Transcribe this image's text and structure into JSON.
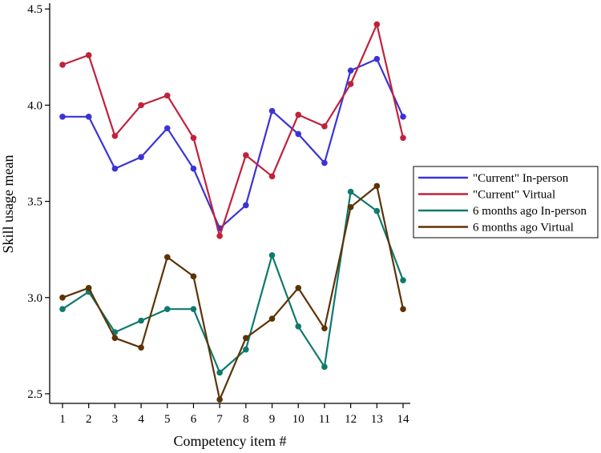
{
  "chart_data": {
    "type": "line",
    "xlabel": "Competency item #",
    "ylabel": "Skill usage mean",
    "x": [
      1,
      2,
      3,
      4,
      5,
      6,
      7,
      8,
      9,
      10,
      11,
      12,
      13,
      14
    ],
    "xticks": [
      "1",
      "2",
      "3",
      "4",
      "5",
      "6",
      "7",
      "8",
      "9",
      "10",
      "11",
      "12",
      "13",
      "14"
    ],
    "ylim": [
      2.45,
      4.53
    ],
    "yticks": [
      "2.5",
      "3.0",
      "3.5",
      "4.0",
      "4.5"
    ],
    "ytick_values": [
      2.5,
      3.0,
      3.5,
      4.0,
      4.5
    ],
    "grid": false,
    "legend_position": "right",
    "series": [
      {
        "name": "\"Current\" In-person",
        "color": "#3b33d6",
        "values": [
          3.94,
          3.94,
          3.67,
          3.73,
          3.88,
          3.67,
          3.36,
          3.48,
          3.97,
          3.85,
          3.7,
          4.18,
          4.24,
          3.94
        ]
      },
      {
        "name": "\"Current\" Virtual",
        "color": "#c0223a",
        "values": [
          4.21,
          4.26,
          3.84,
          4.0,
          4.05,
          3.83,
          3.32,
          3.74,
          3.63,
          3.95,
          3.89,
          4.11,
          4.42,
          3.83
        ]
      },
      {
        "name": "6 months ago In-person",
        "color": "#0e7a6e",
        "values": [
          2.94,
          3.03,
          2.82,
          2.88,
          2.94,
          2.94,
          2.61,
          2.73,
          3.22,
          2.85,
          2.64,
          3.55,
          3.45,
          3.09
        ]
      },
      {
        "name": "6 months ago Virtual",
        "color": "#5c3306",
        "values": [
          3.0,
          3.05,
          2.79,
          2.74,
          3.21,
          3.11,
          2.47,
          2.79,
          2.89,
          3.05,
          2.84,
          3.47,
          3.58,
          2.94
        ]
      }
    ]
  }
}
